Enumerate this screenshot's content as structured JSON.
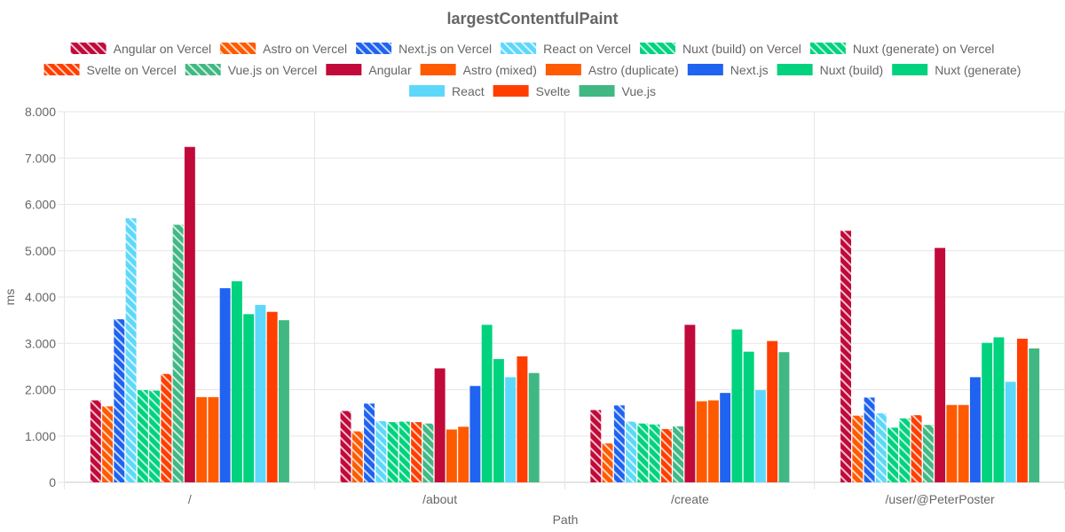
{
  "chart_data": {
    "type": "bar",
    "title": "largestContentfulPaint",
    "xlabel": "Path",
    "ylabel": "ms",
    "ylim": [
      0,
      8000
    ],
    "yticks": [
      0,
      1000,
      2000,
      3000,
      4000,
      5000,
      6000,
      7000,
      8000
    ],
    "ytick_labels": [
      "0",
      "1.000",
      "2.000",
      "3.000",
      "4.000",
      "5.000",
      "6.000",
      "7.000",
      "8.000"
    ],
    "categories": [
      "/",
      "/about",
      "/create",
      "/user/@PeterPoster"
    ],
    "grid": true,
    "legend_position": "top",
    "series": [
      {
        "name": "Angular on Vercel",
        "color": "#c10a3a",
        "hatched": true,
        "values": [
          1770,
          1540,
          1560,
          5430
        ]
      },
      {
        "name": "Astro on Vercel",
        "color": "#ff5a00",
        "hatched": true,
        "values": [
          1640,
          1100,
          840,
          1440
        ]
      },
      {
        "name": "Next.js on Vercel",
        "color": "#1f63f0",
        "hatched": true,
        "values": [
          3520,
          1700,
          1660,
          1830
        ]
      },
      {
        "name": "React on Vercel",
        "color": "#5ed8fa",
        "hatched": true,
        "values": [
          5700,
          1320,
          1310,
          1490
        ]
      },
      {
        "name": "Nuxt (build) on Vercel",
        "color": "#00d27e",
        "hatched": true,
        "values": [
          1990,
          1300,
          1270,
          1180
        ]
      },
      {
        "name": "Nuxt (generate) on Vercel",
        "color": "#00d27e",
        "hatched": true,
        "values": [
          1980,
          1310,
          1250,
          1380
        ]
      },
      {
        "name": "Svelte on Vercel",
        "color": "#ff3e00",
        "hatched": true,
        "values": [
          2340,
          1300,
          1150,
          1450
        ]
      },
      {
        "name": "Vue.js on Vercel",
        "color": "#41b883",
        "hatched": true,
        "values": [
          5560,
          1270,
          1210,
          1240
        ]
      },
      {
        "name": "Angular",
        "color": "#c10a3a",
        "hatched": false,
        "values": [
          7240,
          2460,
          3400,
          5060
        ]
      },
      {
        "name": "Astro (mixed)",
        "color": "#ff5a00",
        "hatched": false,
        "values": [
          1840,
          1140,
          1750,
          1670
        ]
      },
      {
        "name": "Astro (duplicate)",
        "color": "#ff5a00",
        "hatched": false,
        "values": [
          1840,
          1200,
          1770,
          1670
        ]
      },
      {
        "name": "Next.js",
        "color": "#1f63f0",
        "hatched": false,
        "values": [
          4190,
          2080,
          1930,
          2270
        ]
      },
      {
        "name": "Nuxt (build)",
        "color": "#00d27e",
        "hatched": false,
        "values": [
          4340,
          3400,
          3300,
          3010
        ]
      },
      {
        "name": "Nuxt (generate)",
        "color": "#00d27e",
        "hatched": false,
        "values": [
          3630,
          2660,
          2820,
          3130
        ]
      },
      {
        "name": "React",
        "color": "#5ed8fa",
        "hatched": false,
        "values": [
          3830,
          2270,
          1990,
          2170
        ]
      },
      {
        "name": "Svelte",
        "color": "#ff3e00",
        "hatched": false,
        "values": [
          3680,
          2720,
          3050,
          3100
        ]
      },
      {
        "name": "Vue.js",
        "color": "#41b883",
        "hatched": false,
        "values": [
          3500,
          2360,
          2810,
          2890
        ]
      }
    ]
  }
}
